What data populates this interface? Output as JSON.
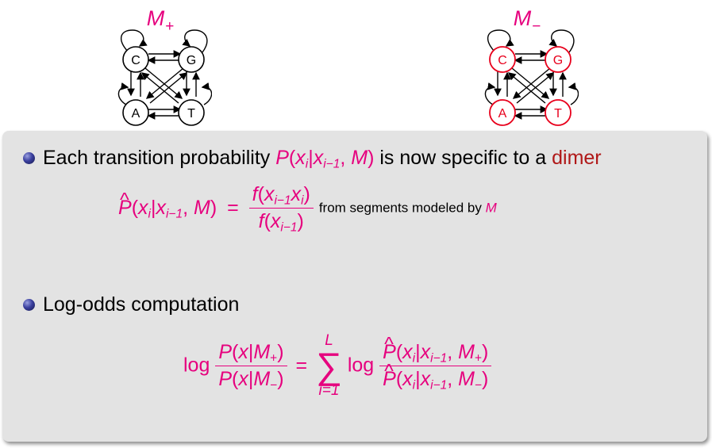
{
  "models": [
    {
      "name": "M",
      "subscript": "+",
      "nodes": [
        "C",
        "G",
        "A",
        "T"
      ],
      "node_color": "#000000"
    },
    {
      "name": "M",
      "subscript": "−",
      "nodes": [
        "C",
        "G",
        "A",
        "T"
      ],
      "node_color": "#e8001c"
    }
  ],
  "bullet1": {
    "text_before": "Each transition probability",
    "p": "P",
    "x": "x",
    "i": "i",
    "im1": "i−1",
    "M": "M",
    "text_after": "is now specific to a",
    "highlight": "dimer"
  },
  "formula1": {
    "num_f": "f",
    "den_f": "f",
    "note_before": "from segments modeled by",
    "note_m": "M"
  },
  "bullet2": {
    "text": "Log-odds computation"
  },
  "formula2": {
    "log": "log",
    "x": "x",
    "M": "M",
    "plus": "+",
    "minus": "−",
    "sum_upper": "L",
    "sum_lower": "i=1"
  },
  "colors": {
    "magenta": "#e6007e",
    "dark_red": "#b01818",
    "node_red": "#e8001c",
    "panel": "#e3e3e3"
  }
}
